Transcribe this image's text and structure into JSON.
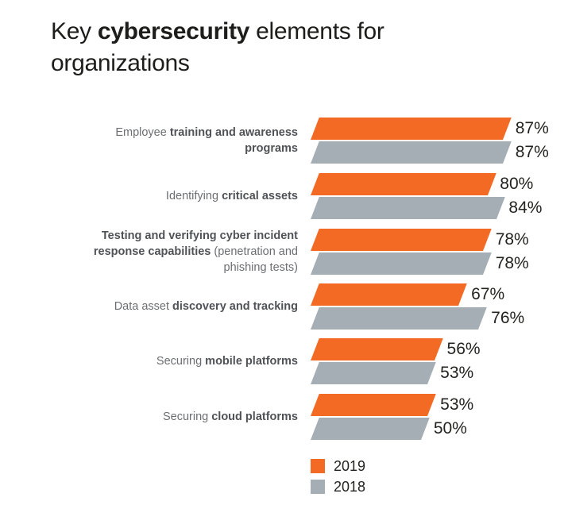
{
  "title": {
    "prefix": "Key ",
    "bold": "cybersecurity",
    "suffix": " elements for organizations"
  },
  "legend": {
    "items": [
      {
        "label": "2019",
        "color": "#f26a24"
      },
      {
        "label": "2018",
        "color": "#a5aeb4"
      }
    ]
  },
  "colors": {
    "accent_orange": "#f26a24",
    "accent_gray": "#a5aeb4",
    "title_text": "#1d1d1b",
    "label_regular": "#6c6e71",
    "label_bold": "#4f5256",
    "value_text": "#232320",
    "background": "#ffffff"
  },
  "chart_data": {
    "type": "bar",
    "orientation": "horizontal",
    "bar_shape": "parallelogram (top edge skewed right)",
    "title": "Key cybersecurity elements for organizations",
    "xlabel": "",
    "ylabel": "",
    "unit": "%",
    "xlim": [
      0,
      100
    ],
    "grid": false,
    "legend_position": "bottom, below bars, left-aligned with bar start",
    "categories": [
      "Employee training and awareness programs",
      "Identifying critical assets",
      "Testing and verifying cyber incident response capabilities (penetration and phishing tests)",
      "Data asset discovery and tracking",
      "Securing mobile platforms",
      "Securing cloud platforms"
    ],
    "label_lines": [
      [
        [
          {
            "text": "Employee ",
            "bold": false
          },
          {
            "text": "training and awareness",
            "bold": true
          }
        ],
        [
          {
            "text": "programs",
            "bold": true
          }
        ]
      ],
      [
        [
          {
            "text": "Identifying ",
            "bold": false
          },
          {
            "text": "critical assets",
            "bold": true
          }
        ]
      ],
      [
        [
          {
            "text": "Testing and verifying cyber incident",
            "bold": true
          }
        ],
        [
          {
            "text": "response capabilities",
            "bold": true
          },
          {
            "text": " (penetration and",
            "bold": false
          }
        ],
        [
          {
            "text": "phishing tests)",
            "bold": false
          }
        ]
      ],
      [
        [
          {
            "text": "Data asset ",
            "bold": false
          },
          {
            "text": "discovery and tracking",
            "bold": true
          }
        ]
      ],
      [
        [
          {
            "text": "Securing ",
            "bold": false
          },
          {
            "text": "mobile platforms",
            "bold": true
          }
        ]
      ],
      [
        [
          {
            "text": "Securing ",
            "bold": false
          },
          {
            "text": "cloud platforms",
            "bold": true
          }
        ]
      ]
    ],
    "series": [
      {
        "name": "2019",
        "color": "#f26a24",
        "values": [
          87,
          80,
          78,
          67,
          56,
          53
        ]
      },
      {
        "name": "2018",
        "color": "#a5aeb4",
        "values": [
          87,
          84,
          78,
          76,
          53,
          50
        ]
      }
    ],
    "value_label_format": "{value}%"
  }
}
